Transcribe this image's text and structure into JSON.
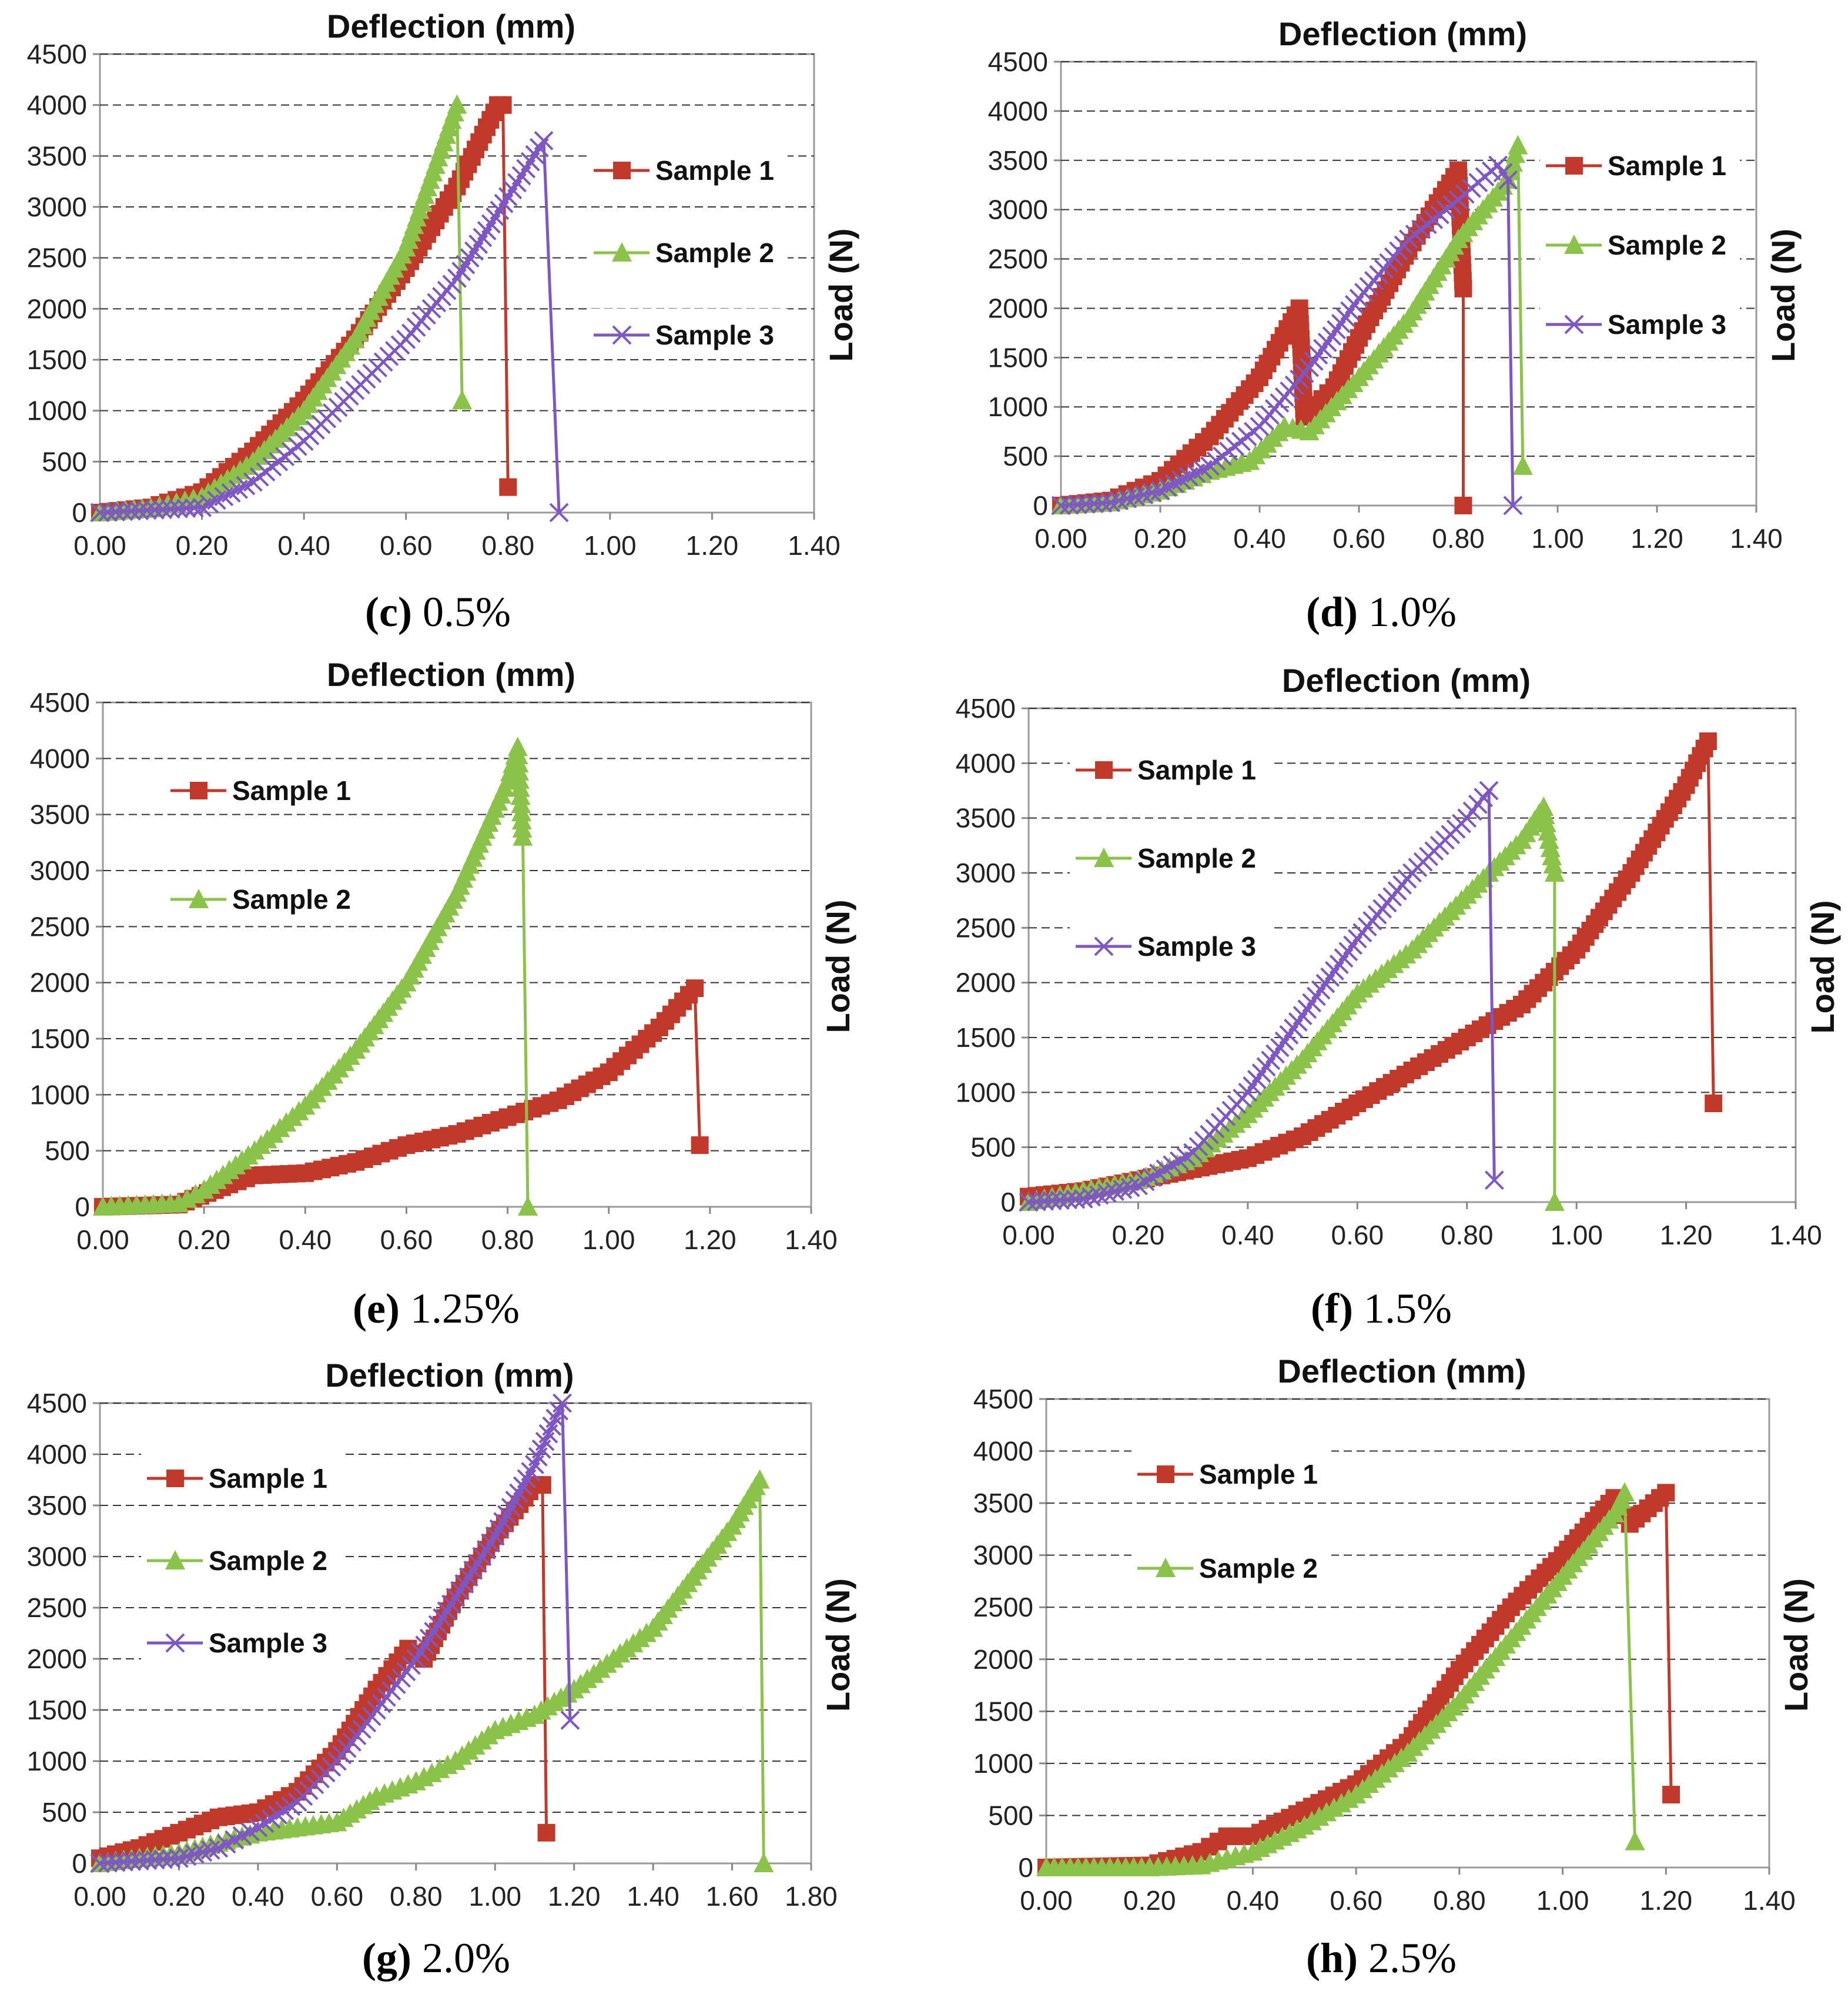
{
  "figure": {
    "colors": {
      "Sample 1": "#c0392b",
      "Sample 2": "#8bc34a",
      "Sample 3": "#7e57c2"
    },
    "markers": {
      "Sample 1": "square",
      "Sample 2": "triangle",
      "Sample 3": "cross"
    }
  },
  "chart_data": [
    {
      "type": "line",
      "panel": "c",
      "caption_letter": "(c)",
      "caption_value": "0.5%",
      "title": "Deflection (mm)",
      "xlabel": "Deflection (mm)",
      "ylabel": "Load (N)",
      "xlim": [
        0,
        1.4
      ],
      "ylim": [
        0,
        4500
      ],
      "xticks": [
        "0.00",
        "0.20",
        "0.40",
        "0.60",
        "0.80",
        "1.00",
        "1.20",
        "1.40"
      ],
      "yticks": [
        "0",
        "500",
        "1000",
        "1500",
        "2000",
        "2500",
        "3000",
        "3500",
        "4000",
        "4500"
      ],
      "legend": "right",
      "series": [
        {
          "name": "Sample 1",
          "points": [
            [
              0,
              0
            ],
            [
              0.1,
              50
            ],
            [
              0.2,
              200
            ],
            [
              0.3,
              600
            ],
            [
              0.4,
              1100
            ],
            [
              0.5,
              1700
            ],
            [
              0.6,
              2400
            ],
            [
              0.7,
              3200
            ],
            [
              0.78,
              4000
            ],
            [
              0.79,
              4000
            ],
            [
              0.8,
              250
            ]
          ]
        },
        {
          "name": "Sample 2",
          "points": [
            [
              0,
              0
            ],
            [
              0.1,
              40
            ],
            [
              0.2,
              150
            ],
            [
              0.3,
              500
            ],
            [
              0.4,
              1000
            ],
            [
              0.5,
              1700
            ],
            [
              0.6,
              2600
            ],
            [
              0.7,
              4000
            ],
            [
              0.71,
              1100
            ]
          ]
        },
        {
          "name": "Sample 3",
          "points": [
            [
              0,
              0
            ],
            [
              0.2,
              50
            ],
            [
              0.3,
              300
            ],
            [
              0.4,
              700
            ],
            [
              0.5,
              1200
            ],
            [
              0.6,
              1700
            ],
            [
              0.7,
              2300
            ],
            [
              0.8,
              3100
            ],
            [
              0.87,
              3650
            ],
            [
              0.9,
              0
            ]
          ]
        }
      ]
    },
    {
      "type": "line",
      "panel": "d",
      "caption_letter": "(d)",
      "caption_value": "1.0%",
      "title": "Deflection (mm)",
      "xlabel": "Deflection (mm)",
      "ylabel": "Load (N)",
      "xlim": [
        0,
        1.4
      ],
      "ylim": [
        0,
        4500
      ],
      "xticks": [
        "0.00",
        "0.20",
        "0.40",
        "0.60",
        "0.80",
        "1.00",
        "1.20",
        "1.40"
      ],
      "yticks": [
        "0",
        "500",
        "1000",
        "1500",
        "2000",
        "2500",
        "3000",
        "3500",
        "4000",
        "4500"
      ],
      "legend": "right",
      "series": [
        {
          "name": "Sample 1",
          "points": [
            [
              0,
              0
            ],
            [
              0.1,
              50
            ],
            [
              0.2,
              250
            ],
            [
              0.3,
              700
            ],
            [
              0.4,
              1300
            ],
            [
              0.48,
              2000
            ],
            [
              0.49,
              900
            ],
            [
              0.55,
              1200
            ],
            [
              0.6,
              1700
            ],
            [
              0.7,
              2600
            ],
            [
              0.8,
              3400
            ],
            [
              0.81,
              2200
            ],
            [
              0.81,
              0
            ]
          ]
        },
        {
          "name": "Sample 2",
          "points": [
            [
              0,
              0
            ],
            [
              0.1,
              30
            ],
            [
              0.2,
              150
            ],
            [
              0.3,
              350
            ],
            [
              0.38,
              450
            ],
            [
              0.45,
              800
            ],
            [
              0.5,
              750
            ],
            [
              0.6,
              1300
            ],
            [
              0.7,
              1900
            ],
            [
              0.8,
              2700
            ],
            [
              0.9,
              3300
            ],
            [
              0.92,
              3650
            ],
            [
              0.93,
              400
            ]
          ]
        },
        {
          "name": "Sample 3",
          "points": [
            [
              0,
              0
            ],
            [
              0.1,
              30
            ],
            [
              0.2,
              150
            ],
            [
              0.3,
              400
            ],
            [
              0.4,
              800
            ],
            [
              0.5,
              1400
            ],
            [
              0.6,
              2100
            ],
            [
              0.7,
              2700
            ],
            [
              0.8,
              3100
            ],
            [
              0.88,
              3450
            ],
            [
              0.9,
              3300
            ],
            [
              0.91,
              0
            ]
          ]
        }
      ]
    },
    {
      "type": "line",
      "panel": "e",
      "caption_letter": "(e)",
      "caption_value": "1.25%",
      "title": "Deflection (mm)",
      "xlabel": "Deflection (mm)",
      "ylabel": "Load (N)",
      "xlim": [
        0,
        1.4
      ],
      "ylim": [
        0,
        4500
      ],
      "xticks": [
        "0.00",
        "0.20",
        "0.40",
        "0.60",
        "0.80",
        "1.00",
        "1.20",
        "1.40"
      ],
      "yticks": [
        "0",
        "500",
        "1000",
        "1500",
        "2000",
        "2500",
        "3000",
        "3500",
        "4000",
        "4500"
      ],
      "legend": "top-left",
      "series": [
        {
          "name": "Sample 1",
          "points": [
            [
              0,
              0
            ],
            [
              0.15,
              20
            ],
            [
              0.25,
              200
            ],
            [
              0.3,
              280
            ],
            [
              0.4,
              300
            ],
            [
              0.5,
              400
            ],
            [
              0.6,
              550
            ],
            [
              0.7,
              650
            ],
            [
              0.8,
              800
            ],
            [
              0.9,
              950
            ],
            [
              1.0,
              1200
            ],
            [
              1.1,
              1600
            ],
            [
              1.17,
              1950
            ],
            [
              1.18,
              550
            ]
          ]
        },
        {
          "name": "Sample 2",
          "points": [
            [
              0,
              0
            ],
            [
              0.15,
              30
            ],
            [
              0.2,
              150
            ],
            [
              0.3,
              500
            ],
            [
              0.4,
              900
            ],
            [
              0.5,
              1400
            ],
            [
              0.6,
              2000
            ],
            [
              0.7,
              2800
            ],
            [
              0.8,
              3800
            ],
            [
              0.82,
              4100
            ],
            [
              0.83,
              3300
            ],
            [
              0.84,
              0
            ]
          ]
        }
      ]
    },
    {
      "type": "line",
      "panel": "f",
      "caption_letter": "(f)",
      "caption_value": "1.5%",
      "title": "Deflection (mm)",
      "xlabel": "Deflection (mm)",
      "ylabel": "Load (N)",
      "xlim": [
        0,
        1.4
      ],
      "ylim": [
        0,
        4500
      ],
      "xticks": [
        "0.00",
        "0.20",
        "0.40",
        "0.60",
        "0.80",
        "1.00",
        "1.20",
        "1.40"
      ],
      "yticks": [
        "0",
        "500",
        "1000",
        "1500",
        "2000",
        "2500",
        "3000",
        "3500",
        "4000",
        "4500"
      ],
      "legend": "top-left",
      "series": [
        {
          "name": "Sample 1",
          "points": [
            [
              0,
              50
            ],
            [
              0.1,
              100
            ],
            [
              0.2,
              200
            ],
            [
              0.3,
              300
            ],
            [
              0.4,
              400
            ],
            [
              0.5,
              600
            ],
            [
              0.6,
              900
            ],
            [
              0.7,
              1200
            ],
            [
              0.8,
              1500
            ],
            [
              0.9,
              1800
            ],
            [
              1.0,
              2300
            ],
            [
              1.1,
              3000
            ],
            [
              1.2,
              3800
            ],
            [
              1.24,
              4200
            ],
            [
              1.25,
              900
            ]
          ]
        },
        {
          "name": "Sample 2",
          "points": [
            [
              0,
              0
            ],
            [
              0.1,
              100
            ],
            [
              0.2,
              200
            ],
            [
              0.3,
              400
            ],
            [
              0.4,
              800
            ],
            [
              0.5,
              1300
            ],
            [
              0.6,
              1900
            ],
            [
              0.7,
              2300
            ],
            [
              0.8,
              2800
            ],
            [
              0.9,
              3300
            ],
            [
              0.94,
              3600
            ],
            [
              0.96,
              3000
            ],
            [
              0.96,
              0
            ]
          ]
        },
        {
          "name": "Sample 3",
          "points": [
            [
              0,
              0
            ],
            [
              0.1,
              30
            ],
            [
              0.2,
              150
            ],
            [
              0.3,
              450
            ],
            [
              0.4,
              1000
            ],
            [
              0.5,
              1700
            ],
            [
              0.6,
              2400
            ],
            [
              0.7,
              3000
            ],
            [
              0.8,
              3500
            ],
            [
              0.84,
              3750
            ],
            [
              0.85,
              200
            ]
          ]
        }
      ]
    },
    {
      "type": "line",
      "panel": "g",
      "caption_letter": "(g)",
      "caption_value": "2.0%",
      "title": "Deflection (mm)",
      "xlabel": "Deflection (mm)",
      "ylabel": "Load (N)",
      "xlim": [
        0,
        1.8
      ],
      "ylim": [
        0,
        4500
      ],
      "xticks": [
        "0.00",
        "0.20",
        "0.40",
        "0.60",
        "0.80",
        "1.00",
        "1.20",
        "1.40",
        "1.60",
        "1.80"
      ],
      "yticks": [
        "0",
        "500",
        "1000",
        "1500",
        "2000",
        "2500",
        "3000",
        "3500",
        "4000",
        "4500"
      ],
      "legend": "top-left",
      "series": [
        {
          "name": "Sample 1",
          "points": [
            [
              0,
              50
            ],
            [
              0.1,
              150
            ],
            [
              0.2,
              300
            ],
            [
              0.3,
              450
            ],
            [
              0.4,
              500
            ],
            [
              0.5,
              700
            ],
            [
              0.6,
              1100
            ],
            [
              0.7,
              1700
            ],
            [
              0.78,
              2100
            ],
            [
              0.82,
              2000
            ],
            [
              0.9,
              2600
            ],
            [
              1.0,
              3200
            ],
            [
              1.1,
              3700
            ],
            [
              1.12,
              3700
            ],
            [
              1.13,
              300
            ]
          ]
        },
        {
          "name": "Sample 2",
          "points": [
            [
              0,
              0
            ],
            [
              0.2,
              100
            ],
            [
              0.3,
              200
            ],
            [
              0.4,
              300
            ],
            [
              0.5,
              350
            ],
            [
              0.6,
              400
            ],
            [
              0.7,
              650
            ],
            [
              0.8,
              800
            ],
            [
              0.9,
              1000
            ],
            [
              1.0,
              1300
            ],
            [
              1.1,
              1450
            ],
            [
              1.2,
              1700
            ],
            [
              1.3,
              2000
            ],
            [
              1.4,
              2300
            ],
            [
              1.5,
              2800
            ],
            [
              1.6,
              3300
            ],
            [
              1.67,
              3750
            ],
            [
              1.68,
              0
            ]
          ]
        },
        {
          "name": "Sample 3",
          "points": [
            [
              0,
              0
            ],
            [
              0.2,
              50
            ],
            [
              0.3,
              150
            ],
            [
              0.4,
              350
            ],
            [
              0.5,
              600
            ],
            [
              0.6,
              1000
            ],
            [
              0.7,
              1500
            ],
            [
              0.8,
              2000
            ],
            [
              0.9,
              2600
            ],
            [
              1.0,
              3200
            ],
            [
              1.1,
              3900
            ],
            [
              1.17,
              4500
            ],
            [
              1.19,
              1400
            ]
          ]
        }
      ]
    },
    {
      "type": "line",
      "panel": "h",
      "caption_letter": "(h)",
      "caption_value": "2.5%",
      "title": "Deflection (mm)",
      "xlabel": "Deflection (mm)",
      "ylabel": "Load (N)",
      "xlim": [
        0,
        1.4
      ],
      "ylim": [
        0,
        4500
      ],
      "xticks": [
        "0.00",
        "0.20",
        "0.40",
        "0.60",
        "0.80",
        "1.00",
        "1.20",
        "1.40"
      ],
      "yticks": [
        "0",
        "500",
        "1000",
        "1500",
        "2000",
        "2500",
        "3000",
        "3500",
        "4000",
        "4500"
      ],
      "legend": "top-left",
      "series": [
        {
          "name": "Sample 1",
          "points": [
            [
              0,
              0
            ],
            [
              0.2,
              20
            ],
            [
              0.3,
              150
            ],
            [
              0.35,
              300
            ],
            [
              0.4,
              300
            ],
            [
              0.5,
              550
            ],
            [
              0.6,
              800
            ],
            [
              0.7,
              1200
            ],
            [
              0.8,
              1900
            ],
            [
              0.9,
              2500
            ],
            [
              1.0,
              3000
            ],
            [
              1.1,
              3550
            ],
            [
              1.13,
              3300
            ],
            [
              1.2,
              3600
            ],
            [
              1.21,
              700
            ]
          ]
        },
        {
          "name": "Sample 2",
          "points": [
            [
              0,
              0
            ],
            [
              0.2,
              0
            ],
            [
              0.3,
              20
            ],
            [
              0.4,
              150
            ],
            [
              0.5,
              400
            ],
            [
              0.6,
              700
            ],
            [
              0.7,
              1100
            ],
            [
              0.8,
              1600
            ],
            [
              0.9,
              2200
            ],
            [
              1.0,
              2800
            ],
            [
              1.1,
              3400
            ],
            [
              1.12,
              3600
            ],
            [
              1.14,
              250
            ]
          ]
        }
      ]
    }
  ]
}
